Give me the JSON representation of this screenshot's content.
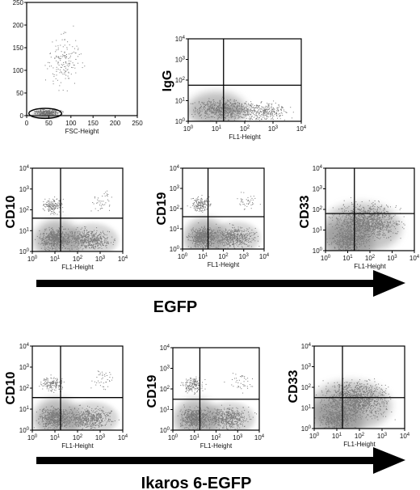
{
  "chart_data": [
    {
      "id": "fsc-ssc",
      "type": "scatter",
      "x_label": "FSC-Height",
      "x_ticks": [
        "0",
        "50",
        "100",
        "150",
        "200",
        "250"
      ],
      "y_ticks": [
        "0",
        "50",
        "100",
        "150",
        "200",
        "250"
      ],
      "x_range": [
        0,
        250
      ],
      "y_range": [
        0,
        250
      ],
      "gate": "ellipse around lymphoid/blast population",
      "gate_center": [
        42,
        5
      ],
      "gate_radius": [
        37,
        11
      ],
      "y_label": ""
    },
    {
      "id": "igg-control",
      "type": "scatter",
      "panel_label": "IgG",
      "x_label": "FL1-Height",
      "x_ticks": [
        "10^0",
        "10^1",
        "10^2",
        "10^3",
        "10^4"
      ],
      "y_ticks": [
        "10^0",
        "10^1",
        "10^2",
        "10^3",
        "10^4"
      ],
      "x_range": [
        0,
        4
      ],
      "y_range": [
        0,
        4
      ],
      "log_scale": true,
      "quadrant_x": 1.25,
      "quadrant_y": 1.75
    },
    {
      "id": "egfp-cd10",
      "type": "scatter",
      "panel_label": "CD10",
      "x_label": "FL1-Height",
      "x_ticks": [
        "10^0",
        "10^1",
        "10^2",
        "10^3",
        "10^4"
      ],
      "y_ticks": [
        "10^0",
        "10^1",
        "10^2",
        "10^3",
        "10^4"
      ],
      "x_range": [
        0,
        4
      ],
      "y_range": [
        0,
        4
      ],
      "log_scale": true,
      "quadrant_x": 1.25,
      "quadrant_y": 1.6
    },
    {
      "id": "egfp-cd19",
      "type": "scatter",
      "panel_label": "CD19",
      "x_label": "FL1-Height",
      "x_ticks": [
        "10^0",
        "10^1",
        "10^2",
        "10^3",
        "10^4"
      ],
      "y_ticks": [
        "10^0",
        "10^1",
        "10^2",
        "10^3",
        "10^4"
      ],
      "x_range": [
        0,
        4
      ],
      "y_range": [
        0,
        4
      ],
      "log_scale": true,
      "quadrant_x": 1.25,
      "quadrant_y": 1.6
    },
    {
      "id": "egfp-cd33",
      "type": "scatter",
      "panel_label": "CD33",
      "x_label": "FL1-Height",
      "x_ticks": [
        "10^0",
        "10^1",
        "10^2",
        "10^3",
        "10^4"
      ],
      "y_ticks": [
        "10^0",
        "10^1",
        "10^2",
        "10^3",
        "10^4"
      ],
      "x_range": [
        0,
        4
      ],
      "y_range": [
        0,
        4
      ],
      "log_scale": true,
      "quadrant_x": 1.3,
      "quadrant_y": 1.8
    },
    {
      "id": "ikaros-cd10",
      "type": "scatter",
      "panel_label": "CD10",
      "x_label": "FL1-Height",
      "x_ticks": [
        "10^0",
        "10^1",
        "10^2",
        "10^3",
        "10^4"
      ],
      "y_ticks": [
        "10^0",
        "10^1",
        "10^2",
        "10^3",
        "10^4"
      ],
      "x_range": [
        0,
        4
      ],
      "y_range": [
        0,
        4
      ],
      "log_scale": true,
      "quadrant_x": 1.25,
      "quadrant_y": 1.55
    },
    {
      "id": "ikaros-cd19",
      "type": "scatter",
      "panel_label": "CD19",
      "x_label": "FL1-Height",
      "x_ticks": [
        "10^0",
        "10^1",
        "10^2",
        "10^3",
        "10^4"
      ],
      "y_ticks": [
        "10^0",
        "10^1",
        "10^2",
        "10^3",
        "10^4"
      ],
      "x_range": [
        0,
        4
      ],
      "y_range": [
        0,
        4
      ],
      "log_scale": true,
      "quadrant_x": 1.25,
      "quadrant_y": 1.5
    },
    {
      "id": "ikaros-cd33",
      "type": "scatter",
      "panel_label": "CD33",
      "x_label": "FL1-Height",
      "x_ticks": [
        "10^0",
        "10^1",
        "10^2",
        "10^3",
        "10^4"
      ],
      "y_ticks": [
        "10^0",
        "10^1",
        "10^2",
        "10^3",
        "10^4"
      ],
      "x_range": [
        0,
        4
      ],
      "y_range": [
        0,
        4
      ],
      "log_scale": true,
      "quadrant_x": 1.25,
      "quadrant_y": 1.5
    }
  ],
  "arrows": [
    {
      "id": "arrow-egfp",
      "label": "EGFP"
    },
    {
      "id": "arrow-ikaros",
      "label": "Ikaros 6-EGFP"
    }
  ],
  "colors": {
    "dots": "#7a7a7a",
    "dense": "#8a8a8a",
    "frame": "#000000"
  }
}
